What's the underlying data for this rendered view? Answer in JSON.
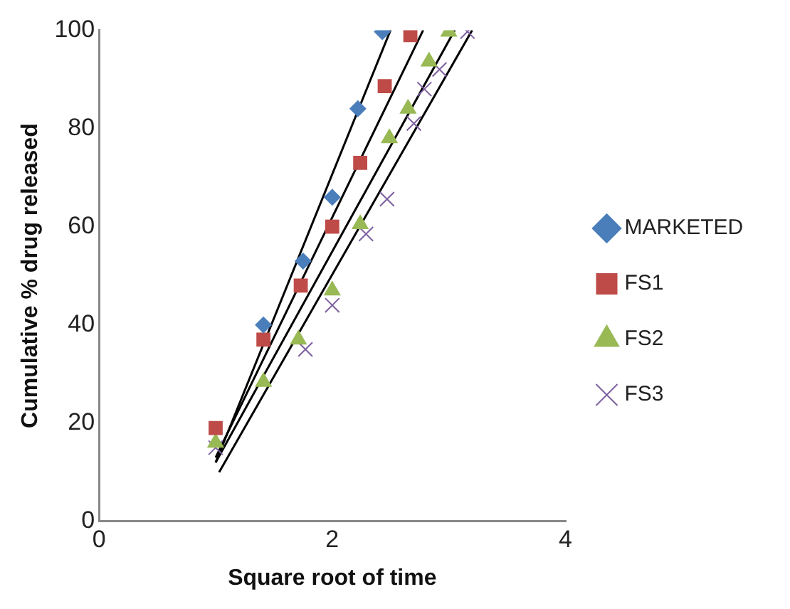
{
  "chart_data": {
    "type": "scatter",
    "xlabel": "Square root of time",
    "ylabel": "Cumulative % drug released",
    "xlim": [
      0,
      4
    ],
    "xticks": [
      0,
      2,
      4
    ],
    "ylim": [
      0,
      100
    ],
    "yticks": [
      0,
      20,
      40,
      60,
      80,
      100
    ],
    "grid": false,
    "legend": "right",
    "series": [
      {
        "name": "MARKETED",
        "color": "#4a7ebb",
        "marker": "diamond",
        "x": [
          1.41,
          1.75,
          2.0,
          2.22,
          2.43
        ],
        "values": [
          40,
          53,
          66,
          84,
          99.7
        ]
      },
      {
        "name": "FS1",
        "color": "#be4b48",
        "marker": "square",
        "x": [
          1.0,
          1.41,
          1.73,
          2.0,
          2.24,
          2.45,
          2.67
        ],
        "values": [
          19,
          37,
          48,
          60,
          73,
          88.6,
          99
        ]
      },
      {
        "name": "FS2",
        "color": "#98b954",
        "marker": "triangle",
        "x": [
          1.0,
          1.41,
          1.71,
          2.0,
          2.24,
          2.49,
          2.65,
          2.83,
          3.0
        ],
        "values": [
          16,
          28.4,
          37,
          47,
          60.5,
          78,
          84,
          93.6,
          99.7
        ]
      },
      {
        "name": "FS3",
        "color": "#7d60a0",
        "marker": "cross",
        "x": [
          1.0,
          1.77,
          2.0,
          2.29,
          2.47,
          2.7,
          2.79,
          2.92,
          3.16
        ],
        "values": [
          15,
          35,
          44,
          58.5,
          65.6,
          81,
          88,
          92,
          99.7
        ]
      },
      {
        "type": "line",
        "color": "#000000",
        "marker": "none",
        "x": [
          1.0,
          2.5
        ],
        "values": [
          12,
          100
        ]
      },
      {
        "type": "line",
        "color": "#000000",
        "marker": "none",
        "x": [
          1.0,
          2.78
        ],
        "values": [
          13,
          100
        ]
      },
      {
        "type": "line",
        "color": "#000000",
        "marker": "none",
        "x": [
          1.0,
          3.05
        ],
        "values": [
          12,
          100
        ]
      },
      {
        "type": "line",
        "color": "#000000",
        "marker": "none",
        "x": [
          1.03,
          3.2
        ],
        "values": [
          10,
          100
        ]
      }
    ]
  }
}
